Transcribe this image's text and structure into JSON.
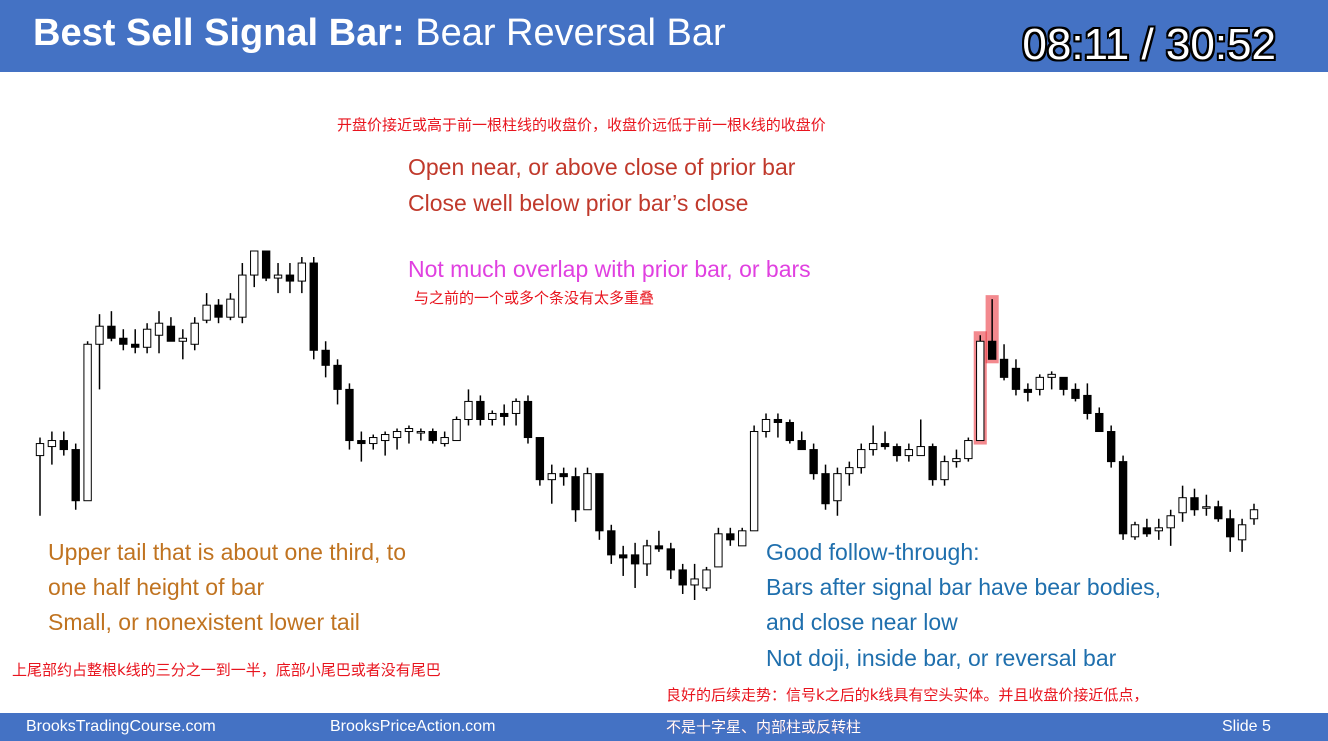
{
  "title": {
    "bold": "Best Sell Signal Bar:",
    "regular": " Bear Reversal Bar"
  },
  "timecode": "08:11 / 30:52",
  "notes": {
    "cn_top": "开盘价接近或高于前一根柱线的收盘价，收盘价远低于前一根k线的收盘价",
    "open_line": "Open near, or above close of prior bar",
    "close_line": "Close well below prior bar’s close",
    "overlap_line": "Not much overlap with prior bar, or bars",
    "cn_overlap": "与之前的一个或多个条没有太多重叠",
    "tail_line1": "Upper tail that is about one third, to",
    "tail_line2": "one half height of bar",
    "tail_line3": "Small, or nonexistent lower tail",
    "cn_tail": "上尾部约占整根k线的三分之一到一半，底部小尾巴或者没有尾巴",
    "follow_line1": "Good follow-through:",
    "follow_line2": "Bars after signal bar have bear bodies,",
    "follow_line3": "and close near low",
    "follow_line4": "Not doji, inside bar, or reversal bar",
    "cn_follow1": "良好的后续走势：信号k之后的k线具有空头实体。并且收盘价接近低点，",
    "cn_follow2": "不是十字星、内部柱或反转柱"
  },
  "footer": {
    "left": "BrooksTradingCourse.com",
    "center": "BrooksPriceAction.com",
    "slide": "Slide  5"
  },
  "colors": {
    "title_bar": "#4472c4",
    "bull_body": "#ffffff",
    "bear_body": "#000000",
    "highlight": "#e8141e"
  },
  "chart_data": {
    "type": "candlestick",
    "note": "Price values in relative units (higher = higher price); no axis printed.",
    "bars": [
      {
        "o": 58,
        "h": 64,
        "l": 38,
        "c": 62
      },
      {
        "o": 61,
        "h": 66,
        "l": 55,
        "c": 63
      },
      {
        "o": 63,
        "h": 66,
        "l": 58,
        "c": 60
      },
      {
        "o": 60,
        "h": 62,
        "l": 40,
        "c": 43
      },
      {
        "o": 43,
        "h": 96,
        "l": 43,
        "c": 95
      },
      {
        "o": 95,
        "h": 105,
        "l": 80,
        "c": 101
      },
      {
        "o": 101,
        "h": 106,
        "l": 96,
        "c": 97
      },
      {
        "o": 97,
        "h": 100,
        "l": 93,
        "c": 95
      },
      {
        "o": 95,
        "h": 100,
        "l": 92,
        "c": 94
      },
      {
        "o": 94,
        "h": 102,
        "l": 92,
        "c": 100
      },
      {
        "o": 98,
        "h": 106,
        "l": 92,
        "c": 102
      },
      {
        "o": 101,
        "h": 104,
        "l": 96,
        "c": 96
      },
      {
        "o": 96,
        "h": 100,
        "l": 90,
        "c": 97
      },
      {
        "o": 95,
        "h": 104,
        "l": 93,
        "c": 102
      },
      {
        "o": 103,
        "h": 112,
        "l": 102,
        "c": 108
      },
      {
        "o": 108,
        "h": 110,
        "l": 102,
        "c": 104
      },
      {
        "o": 104,
        "h": 112,
        "l": 103,
        "c": 110
      },
      {
        "o": 104,
        "h": 122,
        "l": 102,
        "c": 118
      },
      {
        "o": 118,
        "h": 126,
        "l": 114,
        "c": 126
      },
      {
        "o": 126,
        "h": 126,
        "l": 116,
        "c": 117
      },
      {
        "o": 117,
        "h": 122,
        "l": 112,
        "c": 118
      },
      {
        "o": 118,
        "h": 122,
        "l": 112,
        "c": 116
      },
      {
        "o": 116,
        "h": 124,
        "l": 112,
        "c": 122
      },
      {
        "o": 122,
        "h": 124,
        "l": 90,
        "c": 93
      },
      {
        "o": 93,
        "h": 96,
        "l": 84,
        "c": 88
      },
      {
        "o": 88,
        "h": 90,
        "l": 75,
        "c": 80
      },
      {
        "o": 80,
        "h": 82,
        "l": 60,
        "c": 63
      },
      {
        "o": 63,
        "h": 66,
        "l": 56,
        "c": 62
      },
      {
        "o": 62,
        "h": 65,
        "l": 60,
        "c": 64
      },
      {
        "o": 63,
        "h": 66,
        "l": 58,
        "c": 65
      },
      {
        "o": 64,
        "h": 67,
        "l": 60,
        "c": 66
      },
      {
        "o": 66,
        "h": 68,
        "l": 62,
        "c": 67
      },
      {
        "o": 66,
        "h": 67,
        "l": 63,
        "c": 66
      },
      {
        "o": 66,
        "h": 67,
        "l": 62,
        "c": 63
      },
      {
        "o": 62,
        "h": 66,
        "l": 61,
        "c": 64
      },
      {
        "o": 63,
        "h": 71,
        "l": 63,
        "c": 70
      },
      {
        "o": 70,
        "h": 80,
        "l": 68,
        "c": 76
      },
      {
        "o": 76,
        "h": 78,
        "l": 68,
        "c": 70
      },
      {
        "o": 70,
        "h": 73,
        "l": 68,
        "c": 72
      },
      {
        "o": 72,
        "h": 75,
        "l": 68,
        "c": 71
      },
      {
        "o": 72,
        "h": 77,
        "l": 68,
        "c": 76
      },
      {
        "o": 76,
        "h": 78,
        "l": 62,
        "c": 64
      },
      {
        "o": 64,
        "h": 64,
        "l": 48,
        "c": 50
      },
      {
        "o": 50,
        "h": 55,
        "l": 42,
        "c": 52
      },
      {
        "o": 52,
        "h": 54,
        "l": 48,
        "c": 51
      },
      {
        "o": 51,
        "h": 54,
        "l": 36,
        "c": 40
      },
      {
        "o": 40,
        "h": 54,
        "l": 40,
        "c": 52
      },
      {
        "o": 52,
        "h": 52,
        "l": 30,
        "c": 33
      },
      {
        "o": 33,
        "h": 35,
        "l": 22,
        "c": 25
      },
      {
        "o": 25,
        "h": 28,
        "l": 18,
        "c": 24
      },
      {
        "o": 25,
        "h": 29,
        "l": 14,
        "c": 22
      },
      {
        "o": 22,
        "h": 30,
        "l": 18,
        "c": 28
      },
      {
        "o": 28,
        "h": 33,
        "l": 26,
        "c": 27
      },
      {
        "o": 27,
        "h": 29,
        "l": 17,
        "c": 20
      },
      {
        "o": 20,
        "h": 22,
        "l": 12,
        "c": 15
      },
      {
        "o": 15,
        "h": 22,
        "l": 10,
        "c": 17
      },
      {
        "o": 14,
        "h": 21,
        "l": 13,
        "c": 20
      },
      {
        "o": 21,
        "h": 34,
        "l": 21,
        "c": 32
      },
      {
        "o": 32,
        "h": 34,
        "l": 28,
        "c": 30
      },
      {
        "o": 28,
        "h": 34,
        "l": 28,
        "c": 33
      },
      {
        "o": 33,
        "h": 68,
        "l": 33,
        "c": 66
      },
      {
        "o": 66,
        "h": 72,
        "l": 64,
        "c": 70
      },
      {
        "o": 70,
        "h": 72,
        "l": 64,
        "c": 69
      },
      {
        "o": 69,
        "h": 70,
        "l": 62,
        "c": 63
      },
      {
        "o": 63,
        "h": 66,
        "l": 60,
        "c": 60
      },
      {
        "o": 60,
        "h": 62,
        "l": 50,
        "c": 52
      },
      {
        "o": 52,
        "h": 55,
        "l": 40,
        "c": 42
      },
      {
        "o": 43,
        "h": 54,
        "l": 38,
        "c": 52
      },
      {
        "o": 52,
        "h": 56,
        "l": 48,
        "c": 54
      },
      {
        "o": 54,
        "h": 62,
        "l": 52,
        "c": 60
      },
      {
        "o": 60,
        "h": 68,
        "l": 58,
        "c": 62
      },
      {
        "o": 62,
        "h": 66,
        "l": 60,
        "c": 61
      },
      {
        "o": 61,
        "h": 62,
        "l": 56,
        "c": 58
      },
      {
        "o": 58,
        "h": 62,
        "l": 56,
        "c": 60
      },
      {
        "o": 58,
        "h": 70,
        "l": 58,
        "c": 61
      },
      {
        "o": 61,
        "h": 62,
        "l": 48,
        "c": 50
      },
      {
        "o": 50,
        "h": 58,
        "l": 48,
        "c": 56
      },
      {
        "o": 56,
        "h": 60,
        "l": 54,
        "c": 57
      },
      {
        "o": 57,
        "h": 64,
        "l": 56,
        "c": 63
      },
      {
        "o": 63,
        "h": 98,
        "l": 63,
        "c": 96
      },
      {
        "o": 96,
        "h": 110,
        "l": 90,
        "c": 90
      },
      {
        "o": 90,
        "h": 95,
        "l": 83,
        "c": 84
      },
      {
        "o": 87,
        "h": 90,
        "l": 78,
        "c": 80
      },
      {
        "o": 80,
        "h": 82,
        "l": 76,
        "c": 79
      },
      {
        "o": 80,
        "h": 85,
        "l": 78,
        "c": 84
      },
      {
        "o": 84,
        "h": 86,
        "l": 80,
        "c": 85
      },
      {
        "o": 84,
        "h": 84,
        "l": 78,
        "c": 80
      },
      {
        "o": 80,
        "h": 82,
        "l": 76,
        "c": 77
      },
      {
        "o": 78,
        "h": 82,
        "l": 70,
        "c": 72
      },
      {
        "o": 72,
        "h": 74,
        "l": 66,
        "c": 66
      },
      {
        "o": 66,
        "h": 68,
        "l": 54,
        "c": 56
      },
      {
        "o": 56,
        "h": 58,
        "l": 30,
        "c": 32
      },
      {
        "o": 31,
        "h": 36,
        "l": 30,
        "c": 35
      },
      {
        "o": 34,
        "h": 37,
        "l": 31,
        "c": 32
      },
      {
        "o": 33,
        "h": 37,
        "l": 30,
        "c": 34
      },
      {
        "o": 34,
        "h": 40,
        "l": 28,
        "c": 38
      },
      {
        "o": 39,
        "h": 48,
        "l": 36,
        "c": 44
      },
      {
        "o": 44,
        "h": 47,
        "l": 38,
        "c": 40
      },
      {
        "o": 41,
        "h": 45,
        "l": 38,
        "c": 41
      },
      {
        "o": 41,
        "h": 43,
        "l": 36,
        "c": 37
      },
      {
        "o": 37,
        "h": 40,
        "l": 26,
        "c": 31
      },
      {
        "o": 30,
        "h": 37,
        "l": 26,
        "c": 35
      },
      {
        "o": 37,
        "h": 42,
        "l": 35,
        "c": 40
      }
    ],
    "highlighted_bars": [
      79,
      80
    ]
  }
}
